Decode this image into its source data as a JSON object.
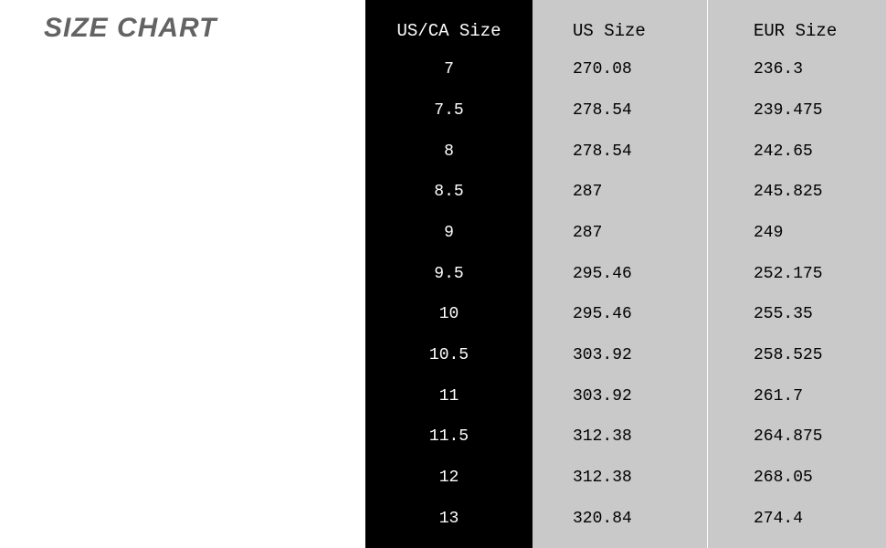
{
  "title": "SIZE CHART",
  "table": {
    "type": "table",
    "background_color_title": "#ffffff",
    "title_color": "#636363",
    "title_fontsize": 30,
    "columns": [
      {
        "header": "US/CA Size",
        "bg_color": "#000000",
        "text_color": "#ffffff",
        "values": [
          "7",
          "7.5",
          "8",
          "8.5",
          "9",
          "9.5",
          "10",
          "10.5",
          "11",
          "11.5",
          "12",
          "13"
        ]
      },
      {
        "header": "US Size",
        "bg_color": "#c9c9c9",
        "text_color": "#000000",
        "values": [
          "270.08",
          "278.54",
          "278.54",
          "287",
          "287",
          "295.46",
          "295.46",
          "303.92",
          "303.92",
          "312.38",
          "312.38",
          "320.84"
        ]
      },
      {
        "header": "EUR Size",
        "bg_color": "#c9c9c9",
        "text_color": "#000000",
        "values": [
          "236.3",
          "239.475",
          "242.65",
          "245.825",
          "249",
          "252.175",
          "255.35",
          "258.525",
          "261.7",
          "264.875",
          "268.05",
          "274.4"
        ]
      }
    ],
    "cell_fontsize": 18,
    "header_fontsize": 19,
    "font_family": "Courier New"
  }
}
